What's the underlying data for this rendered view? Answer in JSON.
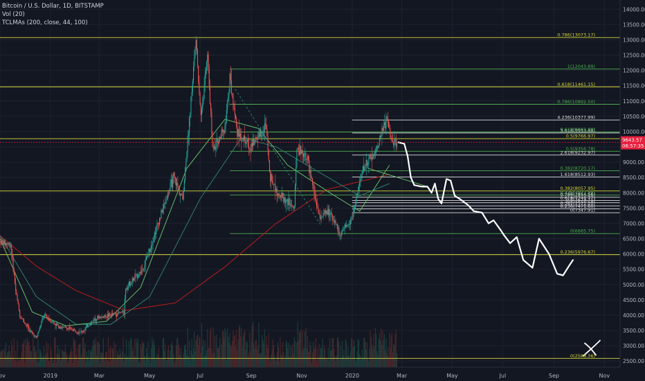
{
  "legend": {
    "symbol": "Bitcoin / U.S. Dollar, 1D, BITSTAMP",
    "volume": "Vol (20)",
    "ma": "TCLMAs (200, close, 44, 100)"
  },
  "price_tag": {
    "value": "9643.57",
    "countdown": "06:57:35",
    "price": 9643.57,
    "color": "#e91e3c"
  },
  "colors": {
    "background": "#131722",
    "grid": "#1e2230",
    "axis_text": "#b2b5be",
    "yellow": "#d8d83a",
    "green": "#4caf50",
    "white": "#e0e0e0",
    "candle_up": "#26a69a",
    "candle_down": "#ef5350",
    "ma200": "#b71c1c",
    "ma100": "#2e7d6f",
    "ma44": "#66bb6a"
  },
  "chart_data": {
    "type": "candlestick",
    "y_axis": {
      "min": 2300,
      "max": 14300,
      "ticks": [
        2500,
        3000,
        3500,
        4000,
        4500,
        5000,
        5500,
        6000,
        6500,
        7000,
        7500,
        8000,
        8500,
        9000,
        9500,
        10000,
        10500,
        11000,
        11500,
        12000,
        12500,
        13000,
        13500,
        14000
      ],
      "labels": [
        "2500.00",
        "3000.00",
        "3500.00",
        "4000.00",
        "4500.00",
        "5000.00",
        "5500.00",
        "6000.00",
        "6500.00",
        "7000.00",
        "7500.00",
        "8000.00",
        "8500.00",
        "9000.00",
        "9500.00",
        "10000.00",
        "10500.00",
        "11000.00",
        "11500.00",
        "12000.00",
        "12500.00",
        "13000.00",
        "13500.00",
        "14000.00"
      ]
    },
    "x_axis": {
      "start": "2018-11-01",
      "end": "2020-11-20",
      "ticks": [
        {
          "date": "2018-11-01",
          "label": "Nov"
        },
        {
          "date": "2019-01-01",
          "label": "2019"
        },
        {
          "date": "2019-03-01",
          "label": "Mar"
        },
        {
          "date": "2019-05-01",
          "label": "May"
        },
        {
          "date": "2019-07-01",
          "label": "Jul"
        },
        {
          "date": "2019-09-01",
          "label": "Sep"
        },
        {
          "date": "2019-11-01",
          "label": "Nov"
        },
        {
          "date": "2020-01-01",
          "label": "2020"
        },
        {
          "date": "2020-03-01",
          "label": "Mar"
        },
        {
          "date": "2020-05-01",
          "label": "May"
        },
        {
          "date": "2020-07-01",
          "label": "Jul"
        },
        {
          "date": "2020-09-01",
          "label": "Sep"
        },
        {
          "date": "2020-11-01",
          "label": "Nov"
        }
      ]
    },
    "price_path": [
      [
        "2018-11-01",
        6400
      ],
      [
        "2018-11-14",
        6300
      ],
      [
        "2018-11-20",
        4800
      ],
      [
        "2018-11-25",
        4000
      ],
      [
        "2018-12-07",
        3500
      ],
      [
        "2018-12-15",
        3250
      ],
      [
        "2018-12-24",
        4000
      ],
      [
        "2019-01-10",
        3650
      ],
      [
        "2019-02-08",
        3450
      ],
      [
        "2019-02-24",
        3900
      ],
      [
        "2019-03-31",
        4100
      ],
      [
        "2019-04-02",
        4900
      ],
      [
        "2019-04-23",
        5500
      ],
      [
        "2019-05-11",
        7000
      ],
      [
        "2019-05-30",
        8500
      ],
      [
        "2019-06-10",
        7800
      ],
      [
        "2019-06-26",
        13000
      ],
      [
        "2019-07-02",
        10500
      ],
      [
        "2019-07-10",
        12500
      ],
      [
        "2019-07-16",
        9500
      ],
      [
        "2019-07-31",
        10000
      ],
      [
        "2019-08-06",
        11800
      ],
      [
        "2019-08-15",
        10000
      ],
      [
        "2019-08-30",
        9500
      ],
      [
        "2019-09-19",
        10200
      ],
      [
        "2019-09-24",
        8500
      ],
      [
        "2019-10-06",
        7900
      ],
      [
        "2019-10-23",
        7500
      ],
      [
        "2019-10-26",
        9500
      ],
      [
        "2019-11-07",
        9200
      ],
      [
        "2019-11-22",
        7200
      ],
      [
        "2019-12-05",
        7400
      ],
      [
        "2019-12-18",
        6600
      ],
      [
        "2020-01-01",
        7200
      ],
      [
        "2020-01-14",
        8800
      ],
      [
        "2020-01-30",
        9400
      ],
      [
        "2020-02-12",
        10400
      ],
      [
        "2020-02-20",
        9600
      ],
      [
        "2020-02-24",
        9650
      ]
    ],
    "volume_max": 1000,
    "moving_averages": [
      {
        "name": "MA200",
        "color": "#b71c1c",
        "points": [
          [
            "2018-11-01",
            6600
          ],
          [
            "2018-12-15",
            5600
          ],
          [
            "2019-02-01",
            4800
          ],
          [
            "2019-04-01",
            4150
          ],
          [
            "2019-06-01",
            4400
          ],
          [
            "2019-08-01",
            5600
          ],
          [
            "2019-10-01",
            7000
          ],
          [
            "2019-12-01",
            8100
          ],
          [
            "2020-01-15",
            8400
          ],
          [
            "2020-02-15",
            8600
          ]
        ]
      },
      {
        "name": "MA100",
        "color": "#2e7d6f",
        "points": [
          [
            "2018-11-01",
            6600
          ],
          [
            "2018-12-15",
            4600
          ],
          [
            "2019-02-01",
            3700
          ],
          [
            "2019-03-15",
            3700
          ],
          [
            "2019-05-01",
            4600
          ],
          [
            "2019-07-01",
            7800
          ],
          [
            "2019-08-20",
            9800
          ],
          [
            "2019-10-01",
            9500
          ],
          [
            "2019-11-20",
            8700
          ],
          [
            "2020-01-10",
            7900
          ],
          [
            "2020-02-15",
            8300
          ]
        ]
      },
      {
        "name": "MA44",
        "color": "#66bb6a",
        "points": [
          [
            "2018-11-01",
            6500
          ],
          [
            "2018-12-10",
            4100
          ],
          [
            "2019-01-20",
            3650
          ],
          [
            "2019-03-10",
            3800
          ],
          [
            "2019-04-20",
            4900
          ],
          [
            "2019-06-15",
            8800
          ],
          [
            "2019-07-31",
            10400
          ],
          [
            "2019-09-10",
            10100
          ],
          [
            "2019-10-15",
            8900
          ],
          [
            "2019-12-05",
            8000
          ],
          [
            "2020-01-10",
            7400
          ],
          [
            "2020-02-15",
            8900
          ]
        ]
      }
    ],
    "projection_path": [
      [
        "2020-02-26",
        9650
      ],
      [
        "2020-03-04",
        9600
      ],
      [
        "2020-03-08",
        9200
      ],
      [
        "2020-03-12",
        8500
      ],
      [
        "2020-03-16",
        8250
      ],
      [
        "2020-03-25",
        8200
      ],
      [
        "2020-04-01",
        8200
      ],
      [
        "2020-04-06",
        8000
      ],
      [
        "2020-04-10",
        8300
      ],
      [
        "2020-04-14",
        7800
      ],
      [
        "2020-04-18",
        7650
      ],
      [
        "2020-04-24",
        8450
      ],
      [
        "2020-04-29",
        8400
      ],
      [
        "2020-05-04",
        7900
      ],
      [
        "2020-05-10",
        7800
      ],
      [
        "2020-05-20",
        7600
      ],
      [
        "2020-05-27",
        7400
      ],
      [
        "2020-06-06",
        7350
      ],
      [
        "2020-06-14",
        7000
      ],
      [
        "2020-06-20",
        7100
      ],
      [
        "2020-06-28",
        6800
      ],
      [
        "2020-07-03",
        6600
      ],
      [
        "2020-07-10",
        6350
      ],
      [
        "2020-07-18",
        6550
      ],
      [
        "2020-07-26",
        5800
      ],
      [
        "2020-08-06",
        5550
      ],
      [
        "2020-08-14",
        6500
      ],
      [
        "2020-08-26",
        6000
      ],
      [
        "2020-09-05",
        5350
      ],
      [
        "2020-09-12",
        5300
      ],
      [
        "2020-09-19",
        5600
      ],
      [
        "2020-09-24",
        5800
      ]
    ],
    "x_mark": {
      "date": "2020-10-15",
      "price": 2900
    },
    "fib_levels": [
      {
        "label": "0.786(13073.17)",
        "price": 13073.17,
        "color": "#d8d83a",
        "from": "2018-11-01",
        "to": "2020-11-20"
      },
      {
        "label": "1(12043.89)",
        "price": 12043.89,
        "color": "#4caf50",
        "from": "2019-08-06",
        "to": "2020-11-20"
      },
      {
        "label": "0.618(11461.15)",
        "price": 11461.15,
        "color": "#d8d83a",
        "from": "2018-11-01",
        "to": "2020-11-20"
      },
      {
        "label": "0.786(10892.50)",
        "price": 10892.5,
        "color": "#4caf50",
        "from": "2019-08-06",
        "to": "2020-11-20"
      },
      {
        "label": "4.236(10377.99)",
        "price": 10377.99,
        "color": "#e0e0e0",
        "from": "2020-01-01",
        "to": "2020-11-20"
      },
      {
        "label": "3.618(9953.88)",
        "price": 9953.88,
        "color": "#e0e0e0",
        "from": "2020-01-01",
        "to": "2020-11-20"
      },
      {
        "label": "0.618(9983.88)",
        "price": 9983.88,
        "color": "#4caf50",
        "from": "2019-08-06",
        "to": "2020-11-20"
      },
      {
        "label": "0.5(9766.97)",
        "price": 9766.97,
        "color": "#d8d83a",
        "from": "2018-11-01",
        "to": "2020-11-20"
      },
      {
        "label": "0.5(9356.78)",
        "price": 9356.78,
        "color": "#4caf50",
        "from": "2019-08-06",
        "to": "2020-11-20"
      },
      {
        "label": "2.618(9232.97)",
        "price": 9232.97,
        "color": "#e0e0e0",
        "from": "2020-01-01",
        "to": "2020-11-20"
      },
      {
        "label": "0.382(8720.17)",
        "price": 8720.17,
        "color": "#4caf50",
        "from": "2019-08-06",
        "to": "2020-11-20"
      },
      {
        "label": "1.618(8512.93)",
        "price": 8512.93,
        "color": "#e0e0e0",
        "from": "2020-01-01",
        "to": "2020-11-20"
      },
      {
        "label": "0.382(8057.95)",
        "price": 8057.95,
        "color": "#d8d83a",
        "from": "2018-11-01",
        "to": "2020-11-20"
      },
      {
        "label": "0.236(7927.98)",
        "price": 7927.98,
        "color": "#4caf50",
        "from": "2019-08-06",
        "to": "2020-11-20"
      },
      {
        "label": "0.786(7854.56)",
        "price": 7854.56,
        "color": "#e0e0e0",
        "from": "2020-01-01",
        "to": "2020-11-20"
      },
      {
        "label": "0.618(7745.77)",
        "price": 7745.77,
        "color": "#e0e0e0",
        "from": "2020-01-01",
        "to": "2020-11-20"
      },
      {
        "label": "0.5(7673.71)",
        "price": 7673.71,
        "color": "#e0e0e0",
        "from": "2020-01-01",
        "to": "2020-11-20"
      },
      {
        "label": "0.382(7571.20)",
        "price": 7571.2,
        "color": "#e0e0e0",
        "from": "2020-01-01",
        "to": "2020-11-20"
      },
      {
        "label": "0.236(7471.60)",
        "price": 7471.6,
        "color": "#e0e0e0",
        "from": "2020-01-01",
        "to": "2020-11-20"
      },
      {
        "label": "0(7347.91)",
        "price": 7347.91,
        "color": "#e0e0e0",
        "from": "2020-01-01",
        "to": "2020-11-20"
      },
      {
        "label": "0(6665.75)",
        "price": 6665.75,
        "color": "#4caf50",
        "from": "2019-08-06",
        "to": "2020-11-20"
      },
      {
        "label": "0.236(5976.67)",
        "price": 5976.67,
        "color": "#d8d83a",
        "from": "2018-11-01",
        "to": "2020-11-20"
      },
      {
        "label": "0(2588.36)",
        "price": 2588.36,
        "color": "#d8d83a",
        "from": "2018-11-01",
        "to": "2020-11-20"
      }
    ]
  }
}
